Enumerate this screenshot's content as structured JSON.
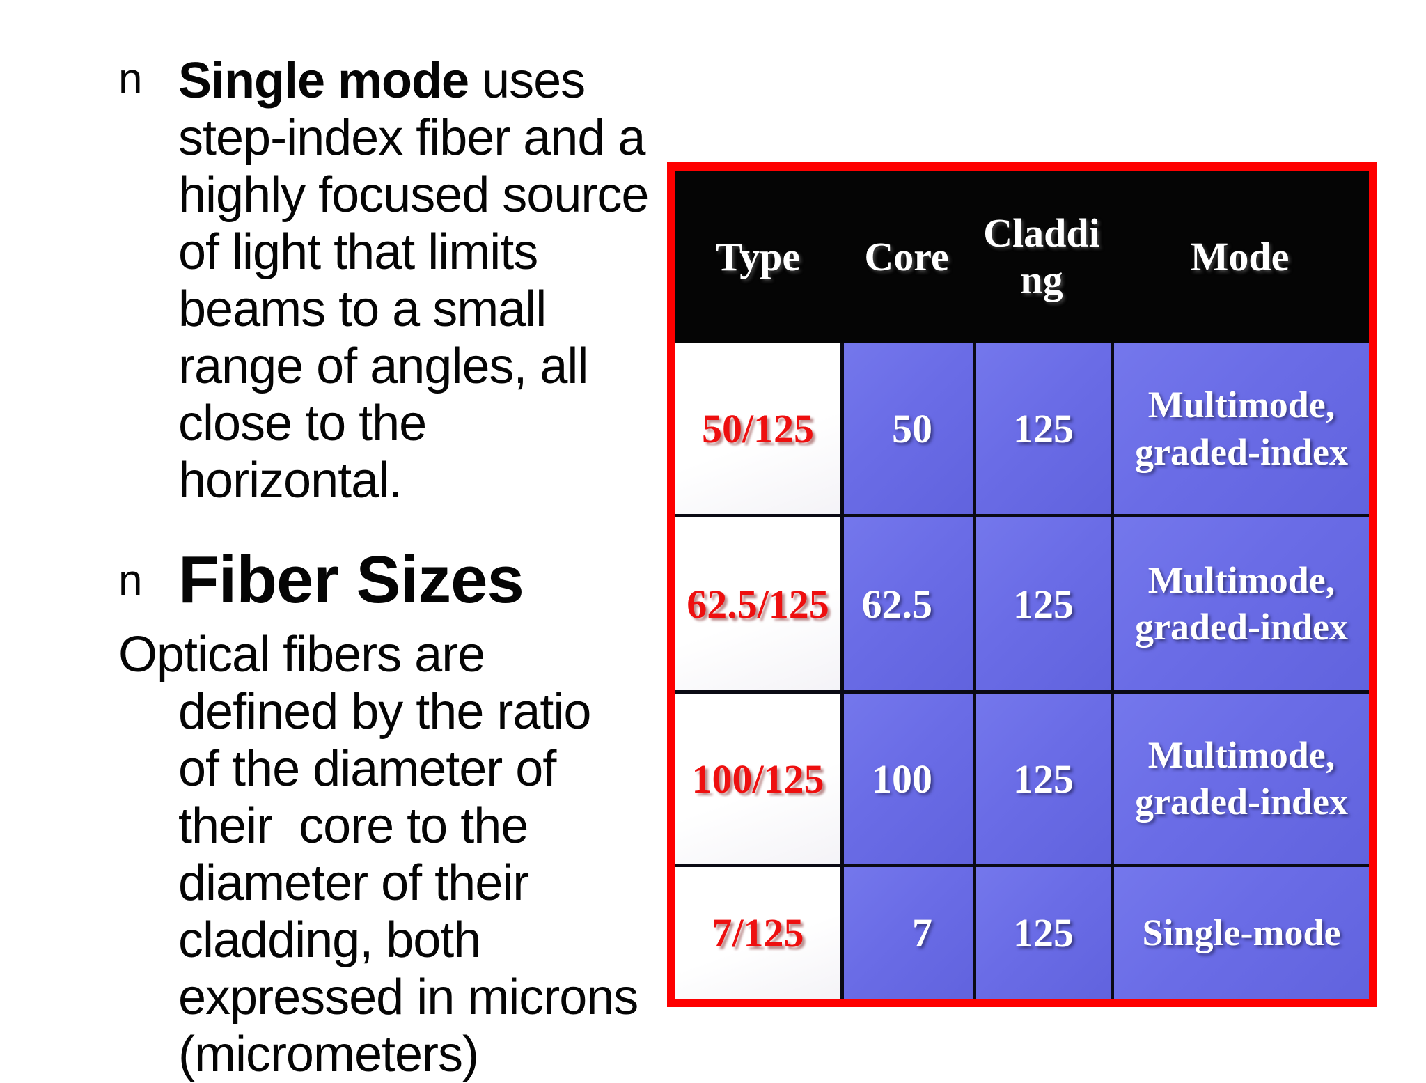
{
  "content": {
    "bullet_char": "n",
    "single_mode": {
      "bold_lead": "Single mode",
      "text_after": " uses\nstep-index fiber and a\nhighly focused source\nof light that limits\nbeams to a small\nrange of angles, all\nclose to the\nhorizontal."
    },
    "fiber_sizes_heading": "Fiber Sizes",
    "fiber_definition": "Optical fibers are\ndefined by the ratio\nof the diameter of\ntheir  core to the\ndiameter of their\ncladding, both\nexpressed in microns\n(micrometers)"
  },
  "table": {
    "headers": [
      "Type",
      "Core",
      "Claddi\nng",
      "Mode"
    ],
    "rows": [
      {
        "type": "50/125",
        "core": "50",
        "cladding": "125",
        "mode": "Multimode,\ngraded-index"
      },
      {
        "type": "62.5/125",
        "core": "62.5",
        "cladding": "125",
        "mode": "Multimode,\ngraded-index"
      },
      {
        "type": "100/125",
        "core": "100",
        "cladding": "125",
        "mode": "Multimode,\ngraded-index"
      },
      {
        "type": "7/125",
        "core": "7",
        "cladding": "125",
        "mode": "Single-mode"
      }
    ]
  },
  "colors": {
    "table_border_red": "#fe0000",
    "header_black": "#050505",
    "cell_blue": "#6a6ce6",
    "type_text_red": "#ee0f0f",
    "body_text": "#050505",
    "cell_text_white": "#ffffff"
  }
}
